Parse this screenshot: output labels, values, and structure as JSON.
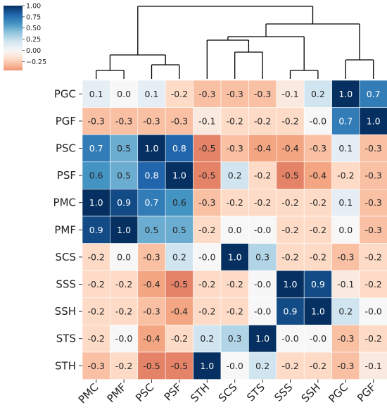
{
  "chart_data": {
    "type": "heatmap",
    "title": "",
    "xlabel": "",
    "ylabel": "",
    "rows": [
      "PGC",
      "PGF",
      "PSC",
      "PSF",
      "PMC",
      "PMF",
      "SCS",
      "SSS",
      "SSH",
      "STS",
      "STH"
    ],
    "columns": [
      "PMC",
      "PMF",
      "PSC",
      "PSF",
      "STH",
      "SCS",
      "STS",
      "SSS",
      "SSH",
      "PGC",
      "PGF"
    ],
    "values": [
      [
        "0.1",
        "0.0",
        "0.1",
        "-0.2",
        "-0.3",
        "-0.3",
        "-0.3",
        "-0.1",
        "0.2",
        "1.0",
        "0.7"
      ],
      [
        "-0.3",
        "-0.3",
        "-0.3",
        "-0.3",
        "-0.1",
        "-0.2",
        "-0.2",
        "-0.2",
        "-0.0",
        "0.7",
        "1.0"
      ],
      [
        "0.7",
        "0.5",
        "1.0",
        "0.8",
        "-0.5",
        "-0.3",
        "-0.4",
        "-0.4",
        "-0.3",
        "0.1",
        "-0.3"
      ],
      [
        "0.6",
        "0.5",
        "0.8",
        "1.0",
        "-0.5",
        "0.2",
        "-0.2",
        "-0.5",
        "-0.4",
        "-0.2",
        "-0.3"
      ],
      [
        "1.0",
        "0.9",
        "0.7",
        "0.6",
        "-0.3",
        "-0.2",
        "-0.2",
        "-0.2",
        "-0.2",
        "0.1",
        "-0.3"
      ],
      [
        "0.9",
        "1.0",
        "0.5",
        "0.5",
        "-0.2",
        "0.0",
        "-0.0",
        "-0.2",
        "-0.2",
        "0.0",
        "-0.3"
      ],
      [
        "-0.2",
        "0.0",
        "-0.3",
        "0.2",
        "-0.0",
        "1.0",
        "0.3",
        "-0.2",
        "-0.2",
        "-0.3",
        "-0.2"
      ],
      [
        "-0.2",
        "-0.2",
        "-0.4",
        "-0.5",
        "-0.2",
        "-0.2",
        "-0.0",
        "1.0",
        "0.9",
        "-0.1",
        "-0.2"
      ],
      [
        "-0.2",
        "-0.2",
        "-0.3",
        "-0.4",
        "-0.2",
        "-0.2",
        "-0.0",
        "0.9",
        "1.0",
        "0.2",
        "-0.0"
      ],
      [
        "-0.2",
        "-0.0",
        "-0.4",
        "-0.2",
        "0.2",
        "0.3",
        "1.0",
        "-0.0",
        "-0.0",
        "-0.3",
        "-0.2"
      ],
      [
        "-0.3",
        "-0.2",
        "-0.5",
        "-0.5",
        "1.0",
        "-0.0",
        "0.2",
        "-0.2",
        "-0.2",
        "-0.3",
        "-0.1"
      ]
    ],
    "colorbar": {
      "range": [
        -0.45,
        1.0
      ],
      "ticks": [
        "1.00",
        "0.75",
        "0.50",
        "0.25",
        "0.00",
        "−0.25"
      ],
      "tick_values": [
        1.0,
        0.75,
        0.5,
        0.25,
        0.0,
        -0.25
      ],
      "colormap": "diverging red-white-blue"
    },
    "dendrogram": {
      "orientation": "top",
      "merges": [
        {
          "left": "PMC",
          "right": "PMF"
        },
        {
          "left": "PSC",
          "right": "PSF"
        },
        {
          "left": "SSS",
          "right": "SSH"
        },
        {
          "left": "PGC",
          "right": "PGF"
        },
        {
          "left": "SCS",
          "right": "STS"
        },
        {
          "left": "STH",
          "right": "SCS+STS"
        },
        {
          "left": "PMC+PMF",
          "right": "PSC+PSF"
        },
        {
          "left": "STH+SCS+STS",
          "right": "SSS+SSH"
        },
        {
          "left": "STH..SSH",
          "right": "PGC+PGF"
        },
        {
          "left": "PMC..PSF",
          "right": "STH..PGF"
        }
      ]
    }
  }
}
